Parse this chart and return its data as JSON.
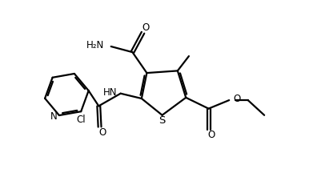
{
  "bg_color": "#ffffff",
  "line_color": "#000000",
  "line_width": 1.6,
  "font_size": 8.5,
  "figsize": [
    3.86,
    2.36
  ],
  "dpi": 100,
  "xlim": [
    0,
    10
  ],
  "ylim": [
    0,
    6.1
  ]
}
